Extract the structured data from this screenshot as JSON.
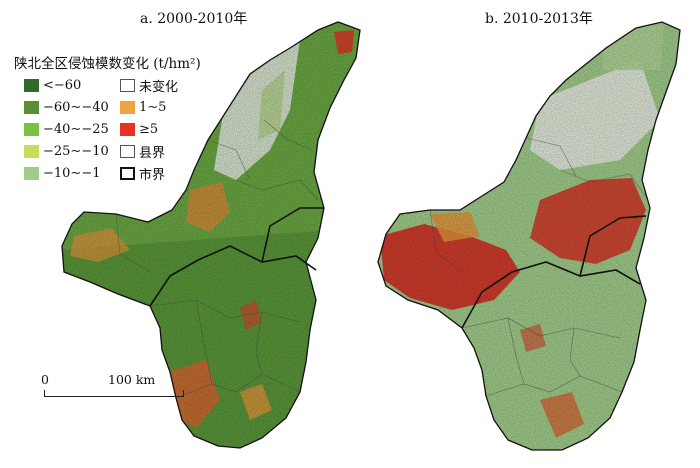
{
  "panels": {
    "a": {
      "title": "a. 2000-2010年"
    },
    "b": {
      "title": "b. 2010-2013年"
    }
  },
  "legend": {
    "title": "陕北全区侵蚀模数变化 (t/hm²)",
    "items": [
      {
        "label": "<−60",
        "color": "#2e6b2a",
        "kind": "fill"
      },
      {
        "label": "−60∼−40",
        "color": "#5a8f34",
        "kind": "fill"
      },
      {
        "label": "−40∼−25",
        "color": "#7ac143",
        "kind": "fill"
      },
      {
        "label": "−25∼−10",
        "color": "#c5dd58",
        "kind": "fill"
      },
      {
        "label": "−10∼−1",
        "color": "#9fcf86",
        "kind": "fill"
      },
      {
        "label": "未变化",
        "color": "#ffffff",
        "kind": "outline-thin"
      },
      {
        "label": "1∼5",
        "color": "#f0a340",
        "kind": "fill"
      },
      {
        "label": "≥5",
        "color": "#e53323",
        "kind": "fill"
      },
      {
        "label": "县界",
        "color": "#ffffff",
        "kind": "outline-thin"
      },
      {
        "label": "市界",
        "color": "#ffffff",
        "kind": "outline-thick"
      }
    ]
  },
  "scale_bar": {
    "start_label": "0",
    "end_label": "100 km"
  }
}
